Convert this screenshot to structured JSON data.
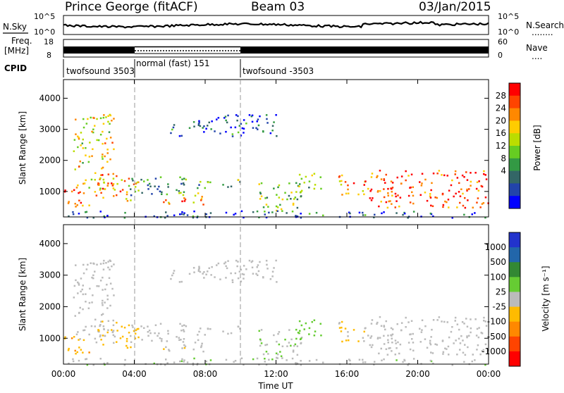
{
  "header": {
    "station": "Prince George (fitACF)",
    "beam": "Beam 03",
    "date": "03/Jan/2015"
  },
  "top_strip": {
    "left_label": "N.Sky",
    "left_ticks": [
      "10^5",
      "10^0"
    ],
    "right_ticks": [
      "10^5",
      "10^0"
    ],
    "right_label": "N.Search",
    "right_legend": "........"
  },
  "freq_strip": {
    "left_label_1": "Freq.",
    "left_label_2": "[MHz]",
    "left_ticks": [
      "18",
      "8"
    ],
    "right_ticks": [
      "60",
      "0"
    ],
    "right_label": "Nave",
    "right_legend": "...."
  },
  "cpid": {
    "label": "CPID",
    "segments": [
      {
        "text": "twofsound 3503",
        "start_hour": 0
      },
      {
        "text": "normal (fast) 151",
        "start_hour": 4
      },
      {
        "text": "twofsound -3503",
        "start_hour": 10
      }
    ]
  },
  "panels": {
    "ylabel": "Slant Range [km]",
    "yticks": [
      "4000",
      "3000",
      "2000",
      "1000"
    ],
    "xlabel": "Time UT",
    "xticks": [
      "00:00",
      "04:00",
      "08:00",
      "12:00",
      "16:00",
      "20:00",
      "00:00"
    ]
  },
  "power_scale": {
    "label": "Power [dB]",
    "ticks": [
      "28",
      "24",
      "20",
      "16",
      "12",
      "8",
      "4"
    ],
    "colors": [
      "#ff0000",
      "#ff4400",
      "#ff8800",
      "#ffcc00",
      "#bbdd00",
      "#66cc22",
      "#339944",
      "#336666",
      "#2244aa",
      "#0000ff"
    ]
  },
  "velocity_scale": {
    "label": "Velocity [m s⁻¹]",
    "ticks": [
      "1000",
      "500",
      "100",
      "25",
      "-25",
      "-100",
      "-500",
      "-1000"
    ],
    "colors": [
      "#2233cc",
      "#2266aa",
      "#338833",
      "#66cc33",
      "#bbbbbb",
      "#ffbb00",
      "#ff8800",
      "#ff4400",
      "#ff0000"
    ]
  },
  "chart_data": {
    "type": "heatmap",
    "title": "Prince George (fitACF)",
    "subtitle": "Beam 03",
    "date": "03/Jan/2015",
    "xlabel": "Time UT",
    "ylabel": "Slant Range [km]",
    "x_range_hours": [
      0,
      24
    ],
    "y_range_km": [
      180,
      4600
    ],
    "power_range_db": [
      0,
      30
    ],
    "velocity_range_ms": [
      -1000,
      1000
    ],
    "cpid_changes": [
      {
        "hour": 0,
        "program": "twofsound 3503"
      },
      {
        "hour": 4,
        "program": "normal (fast) 151"
      },
      {
        "hour": 10,
        "program": "twofsound -3503"
      }
    ],
    "scatter_regions": [
      {
        "t": [
          0.0,
          1.5
        ],
        "r": [
          500,
          1100
        ],
        "power_db": 26,
        "velocity_ms": -300
      },
      {
        "t": [
          0.5,
          2.8
        ],
        "r": [
          1000,
          3500
        ],
        "power_db": 18,
        "velocity_ms": 10
      },
      {
        "t": [
          1.8,
          3.2
        ],
        "r": [
          800,
          1600
        ],
        "power_db": 24,
        "velocity_ms": -100
      },
      {
        "t": [
          3.0,
          4.2
        ],
        "r": [
          600,
          1500
        ],
        "power_db": 20,
        "velocity_ms": -250
      },
      {
        "t": [
          3.5,
          7.0
        ],
        "r": [
          900,
          1500
        ],
        "power_db": 10,
        "velocity_ms": 0
      },
      {
        "t": [
          5.5,
          8.0
        ],
        "r": [
          600,
          1000
        ],
        "power_db": 22,
        "velocity_ms": -50
      },
      {
        "t": [
          7.5,
          10.0
        ],
        "r": [
          1100,
          1400
        ],
        "power_db": 12,
        "velocity_ms": 5
      },
      {
        "t": [
          6.0,
          12.0
        ],
        "r": [
          2800,
          3500
        ],
        "power_db": 6,
        "velocity_ms": 0
      },
      {
        "t": [
          11.0,
          13.5
        ],
        "r": [
          300,
          1300
        ],
        "power_db": 14,
        "velocity_ms": 80
      },
      {
        "t": [
          13.0,
          14.5
        ],
        "r": [
          900,
          1600
        ],
        "power_db": 14,
        "velocity_ms": 200
      },
      {
        "t": [
          15.5,
          17.0
        ],
        "r": [
          900,
          1600
        ],
        "power_db": 22,
        "velocity_ms": -120
      },
      {
        "t": [
          17.0,
          24.0
        ],
        "r": [
          500,
          1700
        ],
        "power_db": 26,
        "velocity_ms": 0
      },
      {
        "t": [
          0.0,
          24.0
        ],
        "r": [
          180,
          400
        ],
        "power_db": 6,
        "velocity_ms": 50
      }
    ]
  }
}
